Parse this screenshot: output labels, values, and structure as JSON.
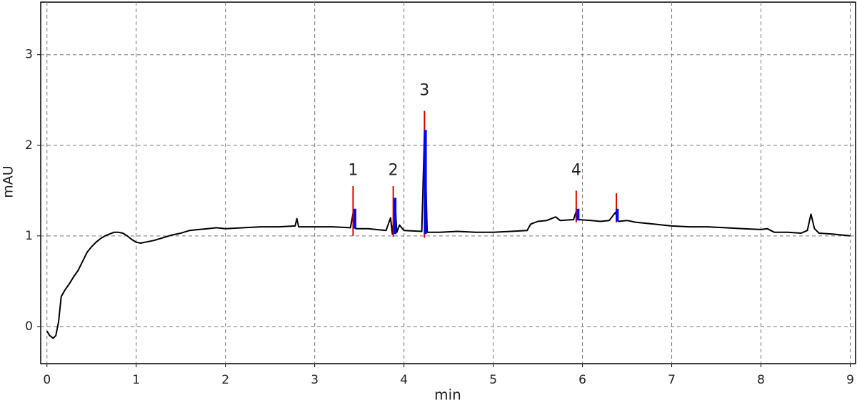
{
  "chart_data": {
    "type": "line",
    "x_label": "min",
    "y_label": "mAU",
    "xlim": [
      -0.07,
      9.06
    ],
    "ylim": [
      -0.41,
      3.58
    ],
    "xticks": [
      0,
      1,
      2,
      3,
      4,
      5,
      6,
      7,
      8,
      9
    ],
    "yticks": [
      0,
      1,
      2,
      3
    ],
    "grid": true,
    "series": [
      {
        "color": "#000000",
        "x": [
          0,
          0.03,
          0.07,
          0.1,
          0.13,
          0.16,
          0.2,
          0.25,
          0.3,
          0.35,
          0.4,
          0.45,
          0.5,
          0.55,
          0.6,
          0.65,
          0.7,
          0.75,
          0.8,
          0.85,
          0.9,
          0.95,
          1.0,
          1.05,
          1.1,
          1.2,
          1.3,
          1.4,
          1.5,
          1.6,
          1.7,
          1.8,
          1.9,
          2.0,
          2.2,
          2.4,
          2.6,
          2.78,
          2.8,
          2.82,
          3.0,
          3.2,
          3.4,
          3.43,
          3.46,
          3.6,
          3.8,
          3.85,
          3.87,
          3.9,
          3.92,
          3.95,
          4.0,
          4.2,
          4.23,
          4.26,
          4.4,
          4.6,
          4.8,
          5.0,
          5.2,
          5.38,
          5.42,
          5.5,
          5.6,
          5.7,
          5.75,
          5.9,
          5.93,
          5.96,
          6.1,
          6.2,
          6.3,
          6.37,
          6.4,
          6.5,
          6.6,
          6.8,
          6.9,
          7.0,
          7.2,
          7.4,
          7.6,
          7.8,
          8.0,
          8.07,
          8.15,
          8.3,
          8.45,
          8.52,
          8.56,
          8.6,
          8.65,
          8.8,
          9.0
        ],
        "values": [
          -0.05,
          -0.1,
          -0.13,
          -0.1,
          0.05,
          0.33,
          0.4,
          0.47,
          0.55,
          0.62,
          0.72,
          0.82,
          0.88,
          0.93,
          0.97,
          1.0,
          1.02,
          1.04,
          1.04,
          1.03,
          1.0,
          0.96,
          0.93,
          0.92,
          0.93,
          0.95,
          0.98,
          1.01,
          1.03,
          1.06,
          1.07,
          1.08,
          1.09,
          1.08,
          1.09,
          1.1,
          1.1,
          1.11,
          1.19,
          1.1,
          1.1,
          1.1,
          1.09,
          1.25,
          1.08,
          1.08,
          1.06,
          1.2,
          1.02,
          1.38,
          1.04,
          1.12,
          1.06,
          1.05,
          2.15,
          1.04,
          1.04,
          1.05,
          1.04,
          1.04,
          1.05,
          1.06,
          1.13,
          1.16,
          1.17,
          1.21,
          1.17,
          1.18,
          1.27,
          1.18,
          1.17,
          1.16,
          1.17,
          1.26,
          1.16,
          1.17,
          1.15,
          1.13,
          1.12,
          1.11,
          1.1,
          1.1,
          1.09,
          1.08,
          1.07,
          1.08,
          1.04,
          1.04,
          1.03,
          1.06,
          1.24,
          1.08,
          1.03,
          1.02,
          1.0
        ]
      }
    ],
    "markers": [
      {
        "color": "#e00000",
        "x": [
          3.43,
          3.88,
          4.23,
          5.93,
          6.38
        ],
        "base": [
          1.0,
          0.99,
          0.98,
          1.15,
          1.15
        ],
        "values": [
          1.55,
          1.55,
          2.38,
          1.5,
          1.47
        ]
      },
      {
        "color": "#0000ff",
        "x": [
          3.45,
          3.9,
          4.24,
          5.95,
          6.39
        ],
        "base": [
          1.08,
          1.02,
          1.02,
          1.17,
          1.16
        ],
        "values": [
          1.3,
          1.42,
          2.17,
          1.3,
          1.3
        ]
      }
    ],
    "annotations": [
      {
        "text": "1",
        "x": 3.43,
        "y": 1.72
      },
      {
        "text": "2",
        "x": 3.88,
        "y": 1.72
      },
      {
        "text": "3",
        "x": 4.23,
        "y": 2.6
      },
      {
        "text": "4",
        "x": 5.93,
        "y": 1.72
      }
    ]
  }
}
